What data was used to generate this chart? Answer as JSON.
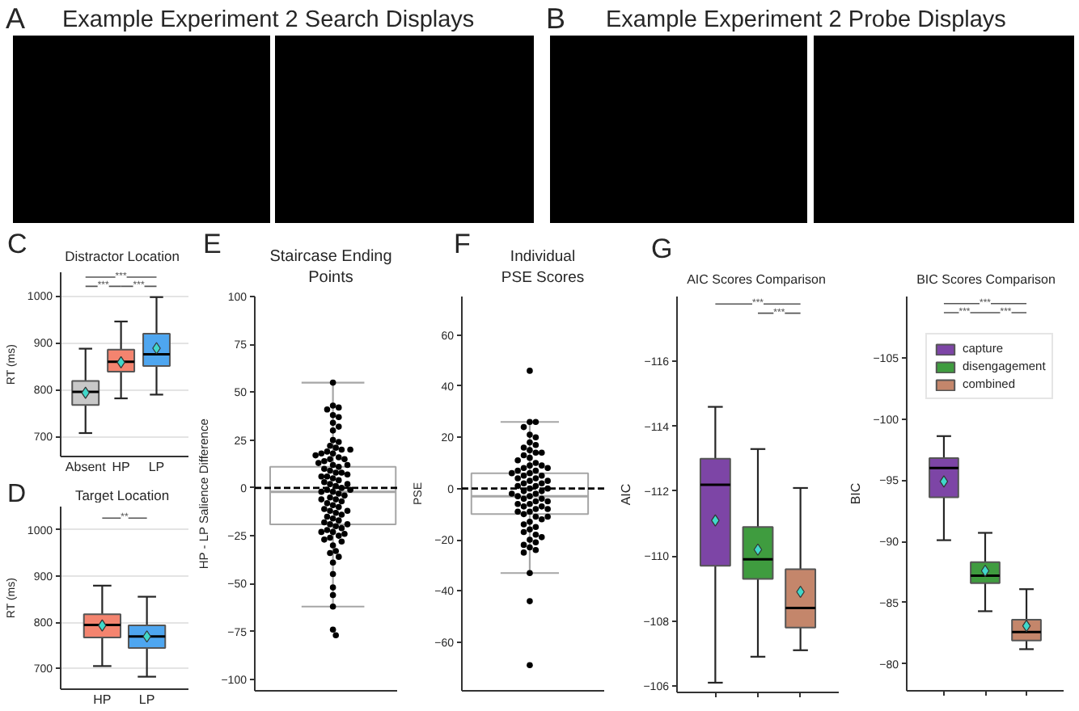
{
  "chart_data": [
    {
      "type": "other",
      "title": "Example Experiment 2 Search Displays",
      "annotations": [
        "A"
      ]
    },
    {
      "type": "other",
      "title": "Example Experiment 2 Probe Displays",
      "annotations": [
        "B"
      ]
    },
    {
      "type": "box",
      "title": "Distractor Location",
      "ylabel": "RT (ms)",
      "categories": [
        "Absent",
        "HP",
        "LP"
      ],
      "colors": [
        "#c8c8c8",
        "#f4846f",
        "#4ea6f0"
      ],
      "boxes": [
        {
          "low": 707,
          "q1": 767,
          "median": 795,
          "q3": 818,
          "high": 887,
          "mean": 793
        },
        {
          "low": 781,
          "q1": 838,
          "median": 859,
          "q3": 885,
          "high": 945,
          "mean": 858
        },
        {
          "low": 789,
          "q1": 850,
          "median": 875,
          "q3": 919,
          "high": 997,
          "mean": 888
        }
      ],
      "ylim": [
        657,
        1050
      ],
      "yticks": [
        700,
        800,
        900,
        1000
      ],
      "grid": "y",
      "marker": "diamond",
      "annotations": [
        "C",
        "***",
        "***",
        "***"
      ]
    },
    {
      "type": "box",
      "title": "Target Location",
      "ylabel": "RT (ms)",
      "categories": [
        "HP",
        "LP"
      ],
      "colors": [
        "#f4846f",
        "#4ea6f0"
      ],
      "boxes": [
        {
          "low": 705,
          "q1": 767,
          "median": 794,
          "q3": 817,
          "high": 879,
          "mean": 793
        },
        {
          "low": 682,
          "q1": 744,
          "median": 769,
          "q3": 793,
          "high": 855,
          "mean": 769
        }
      ],
      "ylim": [
        655,
        1050
      ],
      "yticks": [
        700,
        800,
        900,
        1000
      ],
      "grid": "y",
      "marker": "diamond",
      "annotations": [
        "D",
        "**"
      ]
    },
    {
      "type": "box",
      "title": "Staircase Ending Points",
      "ylabel": "HP - LP Salience Difference",
      "categories": [
        null
      ],
      "series": [
        {
          "type": "box",
          "color": "#a6a6a6",
          "colors": [
            "#ffffff"
          ],
          "boxes": [
            {
              "low": -62,
              "q1": -19,
              "median": -2,
              "q3": 11,
              "high": 55
            }
          ]
        },
        {
          "type": "scatter",
          "color": "#000000",
          "x": [
            null,
            null,
            null,
            null,
            null,
            null,
            null,
            null,
            null,
            null,
            null,
            null,
            null,
            null,
            null,
            null,
            null,
            null,
            null,
            null,
            null,
            null,
            null,
            null,
            null,
            null,
            null,
            null,
            null,
            null,
            null,
            null,
            null,
            null,
            null,
            null,
            null,
            null,
            null,
            null,
            null,
            null,
            null,
            null,
            null,
            null,
            null,
            null,
            null,
            null,
            null,
            null,
            null,
            null,
            null,
            null,
            null,
            null,
            null,
            null,
            null,
            null,
            null,
            null,
            null,
            null,
            null,
            null,
            null,
            null,
            null,
            null,
            null,
            null,
            null,
            null,
            null,
            null,
            null,
            null,
            null,
            null,
            null,
            null,
            null,
            null
          ],
          "values": [
            55,
            43,
            42,
            41,
            38,
            37,
            34,
            32,
            30,
            25,
            24,
            22,
            21,
            20,
            19,
            18,
            16,
            15,
            14,
            12,
            11,
            9,
            8,
            6,
            5,
            4,
            2,
            1,
            -1,
            -2,
            -3,
            -5,
            -6,
            -8,
            -9,
            -10,
            -12,
            -13,
            -15,
            -16,
            -17,
            -19,
            -20,
            -22,
            -23,
            -25,
            -26,
            -30,
            -33,
            -34,
            -36,
            -39,
            -45,
            -52,
            -56,
            -62,
            -74,
            -77,
            18,
            15,
            13,
            10,
            8,
            6,
            3,
            0,
            -2,
            -4,
            -7,
            -11,
            -14,
            -18,
            -21,
            -24,
            -27,
            20,
            17,
            12,
            7,
            2,
            -1,
            -6,
            -12,
            -19,
            -23,
            -28
          ]
        }
      ],
      "ylim": [
        -106,
        100
      ],
      "yticks": [
        -100,
        -75,
        -50,
        -25,
        0,
        25,
        50,
        75,
        100
      ],
      "ref_lines": [
        {
          "axis": "y",
          "value": 0,
          "color": "#000000",
          "line_style": "dashed"
        }
      ],
      "marker": "circle",
      "tick_labels": "y",
      "annotations": [
        "E"
      ]
    },
    {
      "type": "box",
      "title": "Individual PSE Scores",
      "ylabel": "PSE",
      "categories": [
        null
      ],
      "series": [
        {
          "type": "box",
          "color": "#a6a6a6",
          "colors": [
            "#ffffff"
          ],
          "boxes": [
            {
              "low": -33,
              "q1": -10,
              "median": -3,
              "q3": 6,
              "high": 26
            }
          ]
        },
        {
          "type": "scatter",
          "color": "#000000",
          "x": [
            null,
            null,
            null,
            null,
            null,
            null,
            null,
            null,
            null,
            null,
            null,
            null,
            null,
            null,
            null,
            null,
            null,
            null,
            null,
            null,
            null,
            null,
            null,
            null,
            null,
            null,
            null,
            null,
            null,
            null,
            null,
            null,
            null,
            null,
            null,
            null,
            null,
            null,
            null,
            null,
            null,
            null,
            null,
            null,
            null,
            null,
            null,
            null,
            null,
            null,
            null,
            null,
            null,
            null,
            null,
            null,
            null,
            null,
            null,
            null,
            null,
            null,
            null,
            null,
            null,
            null,
            null,
            null,
            null,
            null,
            null,
            null,
            null,
            null
          ],
          "values": [
            46,
            26,
            26,
            24,
            21,
            20,
            18,
            17,
            16,
            15,
            14,
            13,
            12,
            10,
            9,
            8,
            7,
            6,
            5,
            4,
            3,
            2,
            1,
            0,
            -1,
            -2,
            -3,
            -4,
            -5,
            -6,
            -7,
            -8,
            -9,
            -10,
            -11,
            -13,
            -15,
            -16,
            -17,
            -18,
            -20,
            -21,
            -22,
            -23,
            -24,
            -25,
            -33,
            -44,
            -69,
            9,
            7,
            5,
            4,
            2,
            1,
            -1,
            -3,
            -4,
            -6,
            -7,
            -9,
            -12,
            -14,
            8,
            6,
            3,
            0,
            -2,
            -5,
            -8,
            -11,
            11,
            -19,
            14
          ]
        }
      ],
      "ylim": [
        -79,
        75
      ],
      "yticks": [
        -60,
        -40,
        -20,
        0,
        20,
        40,
        60
      ],
      "ref_lines": [
        {
          "axis": "y",
          "value": 0,
          "color": "#000000",
          "line_style": "dashed"
        }
      ],
      "marker": "circle",
      "tick_labels": "y",
      "annotations": [
        "F"
      ]
    },
    {
      "type": "box",
      "title": "AIC Scores Comparison",
      "ylabel": "AIC",
      "categories": [
        null,
        null,
        null
      ],
      "colors": [
        "#7d45a6",
        "#3f9c3f",
        "#c4866b"
      ],
      "boxes": [
        {
          "low": -114.6,
          "q1": -113.0,
          "median": -112.2,
          "q3": -109.7,
          "high": -106.1,
          "mean": -111.1
        },
        {
          "low": -113.3,
          "q1": -110.9,
          "median": -109.9,
          "q3": -109.3,
          "high": -106.9,
          "mean": -110.2
        },
        {
          "low": -112.1,
          "q1": -109.6,
          "median": -108.4,
          "q3": -107.8,
          "high": -107.1,
          "mean": -108.9
        }
      ],
      "ylim": [
        -105.8,
        -118
      ],
      "yticks": [
        -116,
        -114,
        -112,
        -110,
        -108,
        -106
      ],
      "marker": "diamond",
      "tick_labels": "y",
      "annotations": [
        "G",
        "***",
        "***"
      ]
    },
    {
      "type": "box",
      "title": "BIC Scores Comparison",
      "ylabel": "BIC",
      "categories": [
        null,
        null,
        null
      ],
      "series": [
        {
          "name": "capture",
          "color": "#7d45a6",
          "boxes": [
            {
              "low": -98.6,
              "q1": -96.8,
              "median": -96.0,
              "q3": -93.6,
              "high": -90.1,
              "mean": -94.9
            },
            null,
            null
          ]
        },
        {
          "name": "disengagement",
          "color": "#3f9c3f",
          "boxes": [
            null,
            {
              "low": -90.7,
              "q1": -88.3,
              "median": -87.2,
              "q3": -86.6,
              "high": -84.3,
              "mean": -87.6
            },
            null
          ]
        },
        {
          "name": "combined",
          "color": "#c4866b",
          "boxes": [
            null,
            null,
            {
              "low": -86.1,
              "q1": -83.6,
              "median": -82.6,
              "q3": -81.9,
              "high": -81.2,
              "mean": -83.1
            }
          ]
        }
      ],
      "ylim": [
        -77.8,
        -110
      ],
      "yticks": [
        -105,
        -100,
        -95,
        -90,
        -85,
        -80
      ],
      "marker": "diamond",
      "tick_labels": "y",
      "legend": "top right",
      "annotations": [
        "***",
        "***",
        "***"
      ]
    }
  ]
}
